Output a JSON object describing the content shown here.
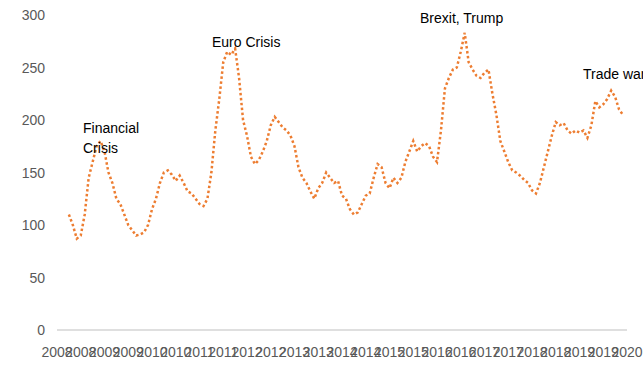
{
  "chart_data": {
    "type": "line",
    "annotations": [
      "Financial\nCrisis",
      "Euro Crisis",
      "Brexit, Trump",
      "Trade war"
    ],
    "categories": [
      "2008",
      null,
      null,
      null,
      null,
      null,
      "2008",
      null,
      null,
      null,
      null,
      null,
      "2009",
      null,
      null,
      null,
      null,
      null,
      "2009",
      null,
      null,
      null,
      null,
      null,
      "2010",
      null,
      null,
      null,
      null,
      null,
      "2010",
      null,
      null,
      null,
      null,
      null,
      "2011",
      null,
      null,
      null,
      null,
      null,
      "2011",
      null,
      null,
      null,
      null,
      null,
      "2012",
      null,
      null,
      null,
      null,
      null,
      "2012",
      null,
      null,
      null,
      null,
      null,
      "2013",
      null,
      null,
      null,
      null,
      null,
      "2013",
      null,
      null,
      null,
      null,
      null,
      "2014",
      null,
      null,
      null,
      null,
      null,
      "2014",
      null,
      null,
      null,
      null,
      null,
      "2015",
      null,
      null,
      null,
      null,
      null,
      "2015",
      null,
      null,
      null,
      null,
      null,
      "2016",
      null,
      null,
      null,
      null,
      null,
      "2016",
      null,
      null,
      null,
      null,
      null,
      "2017",
      null,
      null,
      null,
      null,
      null,
      "2017",
      null,
      null,
      null,
      null,
      null,
      "2018",
      null,
      null,
      null,
      null,
      null,
      "2018",
      null,
      null,
      null,
      null,
      null,
      "2019",
      null,
      null,
      null,
      null,
      null,
      "2019",
      null,
      null,
      null,
      null,
      null,
      "2020"
    ],
    "values": [
      null,
      null,
      null,
      110,
      100,
      87,
      90,
      110,
      145,
      160,
      175,
      180,
      170,
      150,
      140,
      125,
      120,
      110,
      100,
      95,
      90,
      91,
      93,
      100,
      115,
      125,
      140,
      150,
      152,
      148,
      142,
      147,
      140,
      132,
      130,
      125,
      120,
      118,
      125,
      150,
      190,
      220,
      255,
      265,
      262,
      268,
      240,
      200,
      185,
      165,
      158,
      162,
      170,
      180,
      195,
      203,
      198,
      193,
      190,
      185,
      175,
      155,
      145,
      140,
      132,
      125,
      135,
      140,
      150,
      145,
      140,
      142,
      128,
      125,
      115,
      110,
      112,
      120,
      128,
      130,
      145,
      158,
      155,
      140,
      135,
      145,
      140,
      145,
      160,
      170,
      180,
      170,
      175,
      178,
      175,
      165,
      160,
      190,
      230,
      240,
      248,
      250,
      265,
      283,
      255,
      248,
      242,
      240,
      245,
      248,
      225,
      205,
      180,
      170,
      160,
      152,
      150,
      147,
      143,
      140,
      133,
      130,
      140,
      155,
      170,
      185,
      198,
      195,
      197,
      190,
      187,
      190,
      188,
      190,
      183,
      195,
      218,
      212,
      215,
      220,
      228,
      222,
      210,
      205,
      null
    ],
    "color": "#ed7d31",
    "line_style": "dotted",
    "marker": "none",
    "ylim": [
      0,
      300
    ],
    "yticks": [
      0,
      50,
      100,
      150,
      200,
      250,
      300
    ],
    "grid": false
  }
}
